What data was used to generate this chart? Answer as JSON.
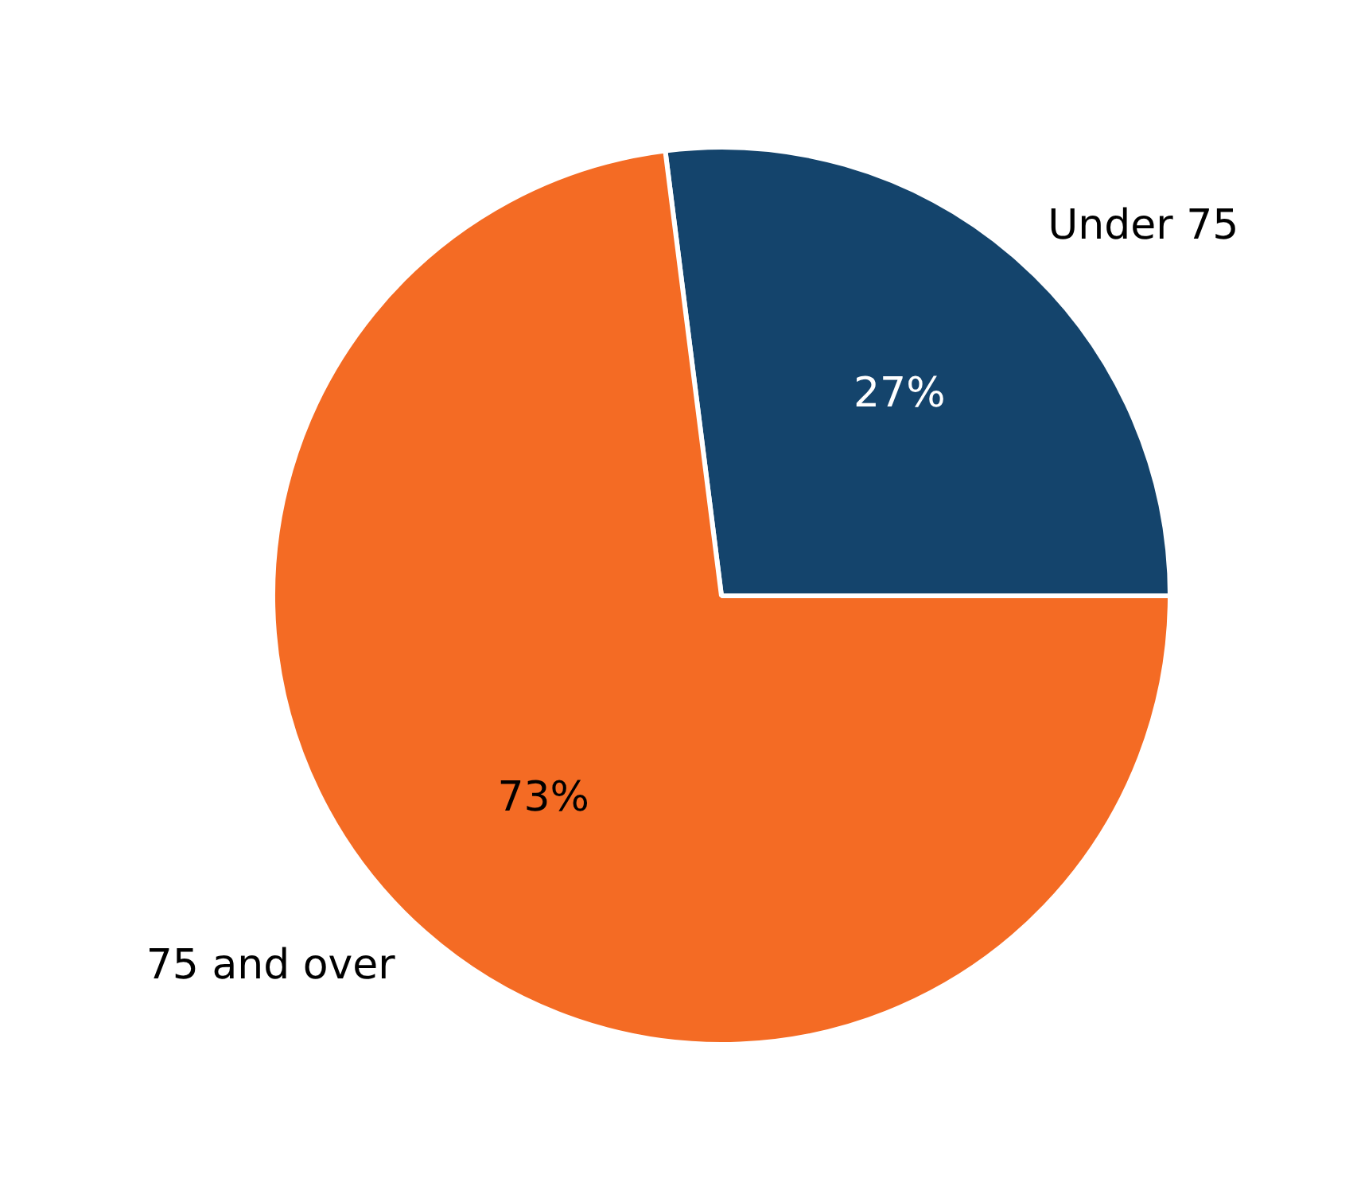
{
  "chart_data": {
    "type": "pie",
    "categories": [
      "Under 75",
      "75 and over"
    ],
    "values": [
      27,
      73
    ],
    "colors": [
      "#14446c",
      "#f46b24"
    ],
    "value_labels": [
      "27%",
      "73%"
    ]
  }
}
